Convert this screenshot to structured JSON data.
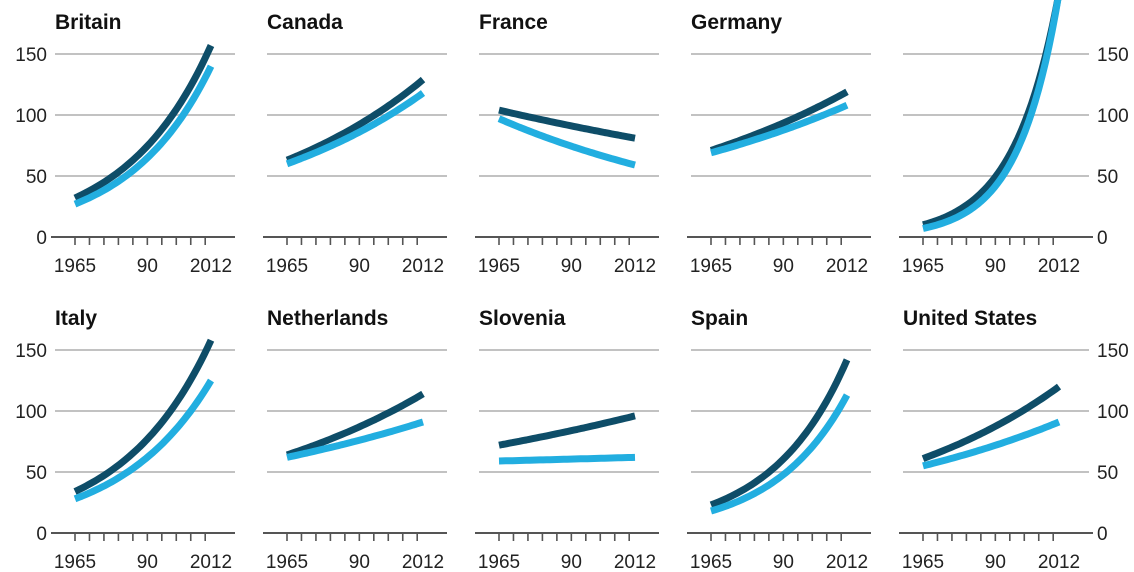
{
  "colors": {
    "dark_series": "#0e4d68",
    "light_series": "#22aee0",
    "grid": "#c2c2c2",
    "axis": "#555555"
  },
  "chart_data": [
    {
      "type": "line",
      "title": "Britain",
      "x": [
        1965,
        2012
      ],
      "ylim": [
        0,
        150
      ],
      "y_ticks": [
        0,
        50,
        100,
        150
      ],
      "x_tick_labels": [
        "1965",
        "90",
        "2012"
      ],
      "series": [
        {
          "values": [
            32,
            157
          ]
        },
        {
          "values": [
            27,
            140
          ]
        }
      ]
    },
    {
      "type": "line",
      "title": "Canada",
      "x": [
        1965,
        2012
      ],
      "ylim": [
        0,
        150
      ],
      "y_ticks": [
        0,
        50,
        100,
        150
      ],
      "x_tick_labels": [
        "1965",
        "90",
        "2012"
      ],
      "series": [
        {
          "values": [
            63,
            129
          ]
        },
        {
          "values": [
            60,
            118
          ]
        }
      ]
    },
    {
      "type": "line",
      "title": "France",
      "x": [
        1965,
        2012
      ],
      "ylim": [
        0,
        150
      ],
      "y_ticks": [
        0,
        50,
        100,
        150
      ],
      "x_tick_labels": [
        "1965",
        "90",
        "2012"
      ],
      "series": [
        {
          "values": [
            104,
            81
          ]
        },
        {
          "values": [
            97,
            59
          ]
        }
      ]
    },
    {
      "type": "line",
      "title": "Germany",
      "x": [
        1965,
        2012
      ],
      "ylim": [
        0,
        150
      ],
      "y_ticks": [
        0,
        50,
        100,
        150
      ],
      "x_tick_labels": [
        "1965",
        "90",
        "2012"
      ],
      "series": [
        {
          "values": [
            71,
            119
          ]
        },
        {
          "values": [
            69,
            108
          ]
        }
      ]
    },
    {
      "type": "line",
      "title": "",
      "x": [
        1965,
        2012
      ],
      "ylim": [
        0,
        200
      ],
      "y_ticks": [
        0,
        50,
        100,
        150,
        200
      ],
      "x_tick_labels": [
        "1965",
        "90",
        "2012"
      ],
      "series": [
        {
          "values": [
            10,
            200
          ]
        },
        {
          "values": [
            7,
            200
          ]
        }
      ]
    },
    {
      "type": "line",
      "title": "Italy",
      "x": [
        1965,
        2012
      ],
      "ylim": [
        0,
        150
      ],
      "y_ticks": [
        0,
        50,
        100,
        150
      ],
      "x_tick_labels": [
        "1965",
        "90",
        "2012"
      ],
      "series": [
        {
          "values": [
            34,
            158
          ]
        },
        {
          "values": [
            28,
            125
          ]
        }
      ]
    },
    {
      "type": "line",
      "title": "Netherlands",
      "x": [
        1965,
        2012
      ],
      "ylim": [
        0,
        150
      ],
      "y_ticks": [
        0,
        50,
        100,
        150
      ],
      "x_tick_labels": [
        "1965",
        "90",
        "2012"
      ],
      "series": [
        {
          "values": [
            64,
            114
          ]
        },
        {
          "values": [
            62,
            91
          ]
        }
      ]
    },
    {
      "type": "line",
      "title": "Slovenia",
      "x": [
        1965,
        2012
      ],
      "ylim": [
        0,
        150
      ],
      "y_ticks": [
        0,
        50,
        100,
        150
      ],
      "x_tick_labels": [
        "1965",
        "90",
        "2012"
      ],
      "series": [
        {
          "values": [
            72,
            96
          ]
        },
        {
          "values": [
            59,
            62
          ]
        }
      ]
    },
    {
      "type": "line",
      "title": "Spain",
      "x": [
        1965,
        2012
      ],
      "ylim": [
        0,
        150
      ],
      "y_ticks": [
        0,
        50,
        100,
        150
      ],
      "x_tick_labels": [
        "1965",
        "90",
        "2012"
      ],
      "series": [
        {
          "values": [
            23,
            142
          ]
        },
        {
          "values": [
            18,
            113
          ]
        }
      ]
    },
    {
      "type": "line",
      "title": "United States",
      "x": [
        1965,
        2012
      ],
      "ylim": [
        0,
        150
      ],
      "y_ticks": [
        0,
        50,
        100,
        150
      ],
      "x_tick_labels": [
        "1965",
        "90",
        "2012"
      ],
      "series": [
        {
          "values": [
            61,
            120
          ]
        },
        {
          "values": [
            55,
            91
          ]
        }
      ]
    }
  ]
}
